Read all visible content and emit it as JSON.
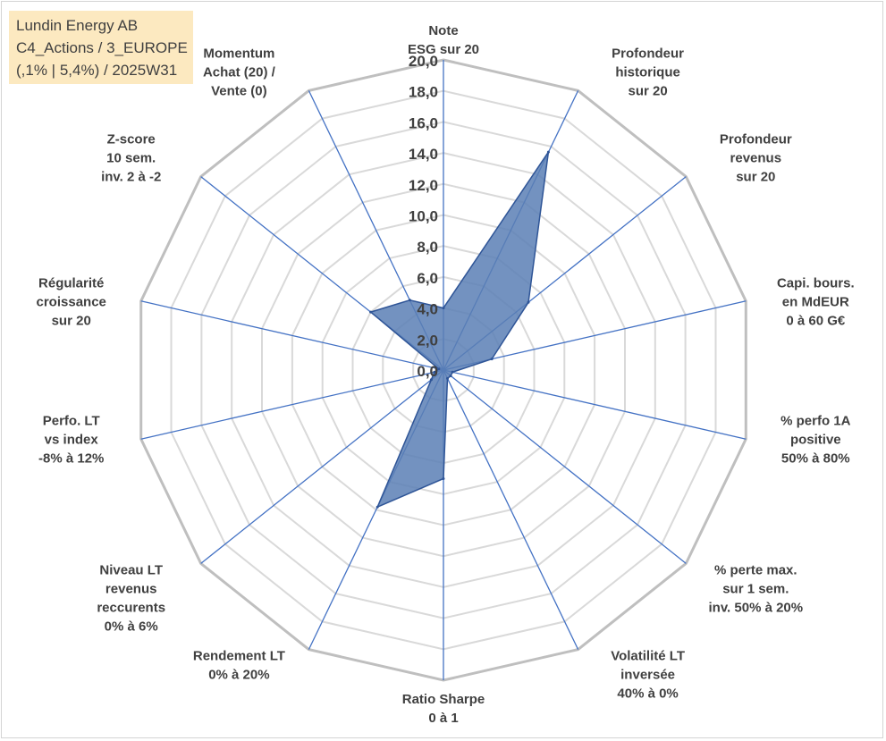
{
  "title_box": {
    "line1": "Lundin Energy AB",
    "line2": "C4_Actions / 3_EUROPE",
    "line3": "(,1% | 5,4%) / 2025W31"
  },
  "colors": {
    "frame": "#d4d4d4",
    "grid_outer": "#bfbfbf",
    "grid_inner": "#d9d9d9",
    "spokes": "#4472c4",
    "fill": "#5b7fb5",
    "stroke": "#2f5597",
    "title_bg": "#fce9c0",
    "text": "#404040"
  },
  "chart_data": {
    "type": "radar",
    "range": [
      0,
      20
    ],
    "tick_step": 2,
    "tick_labels": [
      "0,0",
      "2,0",
      "4,0",
      "6,0",
      "8,0",
      "10,0",
      "12,0",
      "14,0",
      "16,0",
      "18,0",
      "20,0"
    ],
    "grid": true,
    "axes": [
      {
        "label": [
          "Note",
          "ESG sur 20"
        ],
        "value": 4.0
      },
      {
        "label": [
          "Profondeur",
          "historique",
          "sur 20"
        ],
        "value": 15.6
      },
      {
        "label": [
          "Profondeur",
          "revenus",
          "sur 20"
        ],
        "value": 7.0
      },
      {
        "label": [
          "Capi. bours.",
          "en MdEUR",
          "0 à 60 G€"
        ],
        "value": 3.2
      },
      {
        "label": [
          "% perfo 1A",
          "positive",
          "50% à 80%"
        ],
        "value": 0.6
      },
      {
        "label": [
          "% perte max.",
          "sur 1 sem.",
          "inv. 50% à 20%"
        ],
        "value": 0.6
      },
      {
        "label": [
          "Volatilité LT",
          "inversée",
          "40% à 0%"
        ],
        "value": 0.6
      },
      {
        "label": [
          "Ratio Sharpe",
          "0 à 1"
        ],
        "value": 7.0
      },
      {
        "label": [
          "Rendement LT",
          "0% à 20%"
        ],
        "value": 9.8
      },
      {
        "label": [
          "Niveau LT",
          "revenus",
          "reccurents",
          "0% à 6%"
        ],
        "value": 1.0
      },
      {
        "label": [
          "Perfo. LT",
          "vs index",
          "-8% à 12%"
        ],
        "value": 0.6
      },
      {
        "label": [
          "Régularité",
          "croissance",
          "sur 20"
        ],
        "value": 0.3
      },
      {
        "label": [
          "Z-score",
          "10 sem.",
          "inv. 2 à -2"
        ],
        "value": 6.0
      },
      {
        "label": [
          "Momentum",
          "Achat (20) /",
          "Vente (0)"
        ],
        "value": 5.0
      }
    ]
  }
}
